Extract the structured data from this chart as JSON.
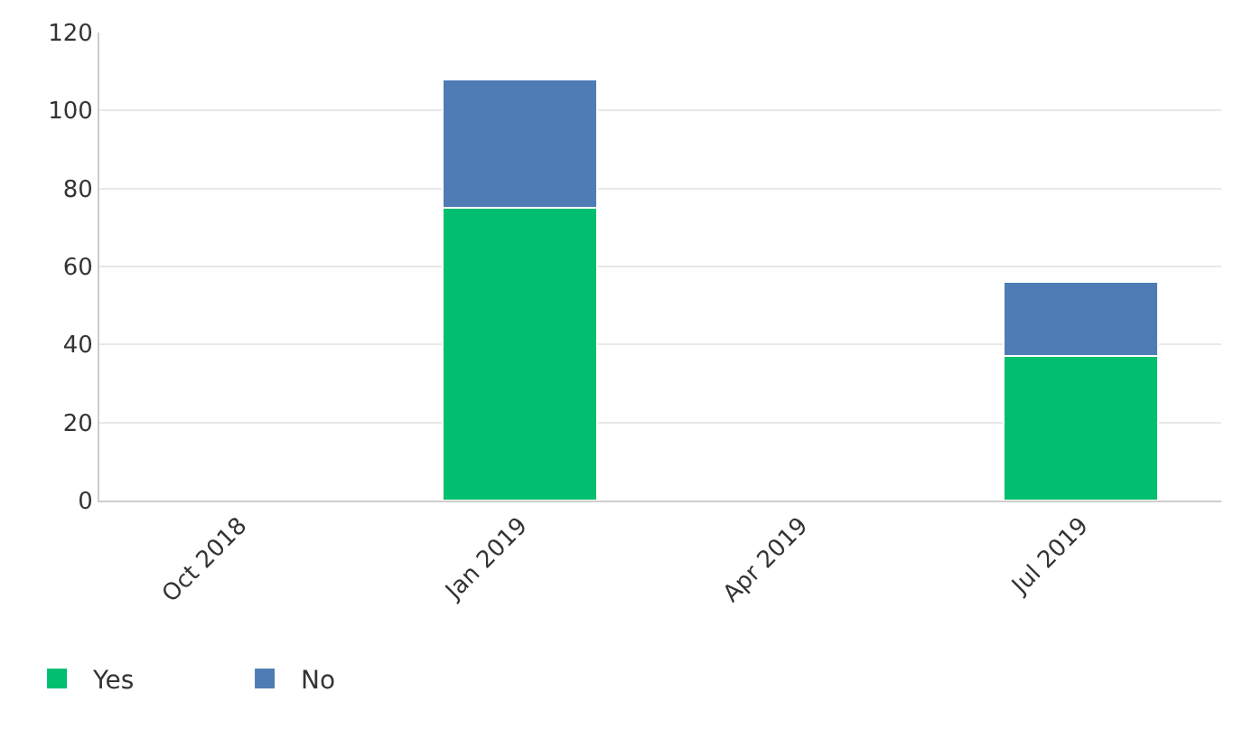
{
  "chart_data": {
    "type": "bar",
    "stacked": true,
    "categories": [
      "Oct 2018",
      "Jan 2019",
      "Apr 2019",
      "Jul 2019"
    ],
    "series": [
      {
        "name": "Yes",
        "color": "#00bf6f",
        "values": [
          null,
          75,
          null,
          37
        ]
      },
      {
        "name": "No",
        "color": "#507cb6",
        "values": [
          null,
          33,
          null,
          19
        ]
      }
    ],
    "ylim": [
      0,
      120
    ],
    "yticks": [
      0,
      20,
      40,
      60,
      80,
      100,
      120
    ],
    "grid": "y",
    "legend": "bottom left"
  }
}
